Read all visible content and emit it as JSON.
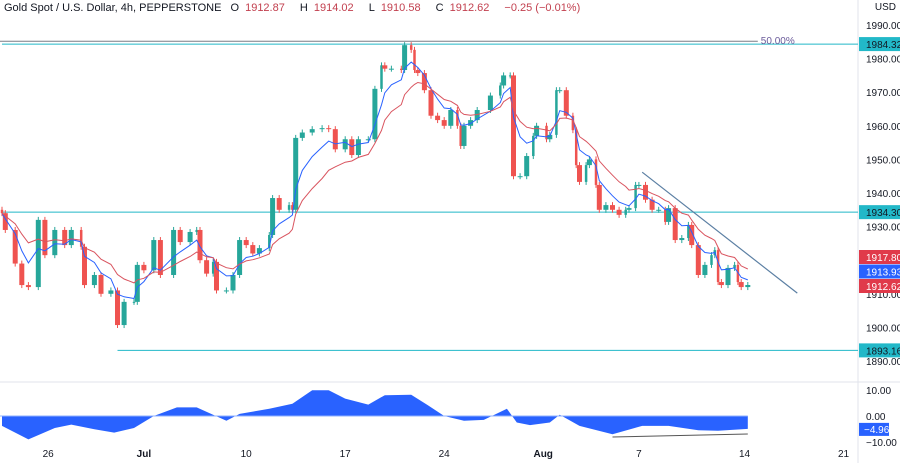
{
  "header": {
    "symbol": "Gold Spot / U.S. Dollar, 4h, PEPPERSTONE",
    "open_label": "O",
    "open": "1912.87",
    "high_label": "H",
    "high": "1914.02",
    "low_label": "L",
    "low": "1910.58",
    "close_label": "C",
    "close": "1912.62",
    "change": "−0.25 (−0.01%)"
  },
  "currency": "USD",
  "colors": {
    "up": "#26a69a",
    "down": "#ef5350",
    "level": "#22b8c8",
    "ema_fast": "#2962ff",
    "ema_slow": "#d9545f",
    "trend": "#5b7fa3",
    "oscillator": "#2962ff"
  },
  "chart_data": {
    "type": "candlestick",
    "x_unit": "4h bar",
    "y_range": [
      1885,
      1993
    ],
    "y_ticks": [
      "1990.00",
      "1980.00",
      "1970.00",
      "1960.00",
      "1950.00",
      "1940.00",
      "1930.00",
      "1910.00",
      "1900.00",
      "1890.00"
    ],
    "x_ticks": [
      {
        "label": "26",
        "bar": 14
      },
      {
        "label": "Jul",
        "bar": 43,
        "bold": true
      },
      {
        "label": "10",
        "bar": 74
      },
      {
        "label": "17",
        "bar": 104
      },
      {
        "label": "24",
        "bar": 134
      },
      {
        "label": "Aug",
        "bar": 164,
        "bold": true
      },
      {
        "label": "7",
        "bar": 193
      },
      {
        "label": "14",
        "bar": 225
      },
      {
        "label": "21",
        "bar": 255
      }
    ],
    "closes": [
      [
        0,
        1934
      ],
      [
        1,
        1929
      ],
      [
        4,
        1919
      ],
      [
        6,
        1912.6
      ],
      [
        8,
        1912
      ],
      [
        11,
        1932
      ],
      [
        13,
        1921.5
      ],
      [
        16,
        1929
      ],
      [
        19,
        1924.5
      ],
      [
        21,
        1929
      ],
      [
        24,
        1924
      ],
      [
        25,
        1912.6
      ],
      [
        28,
        1915.6
      ],
      [
        30,
        1910
      ],
      [
        33,
        1911
      ],
      [
        35,
        1900.7
      ],
      [
        37,
        1907.6
      ],
      [
        40,
        1907.6
      ],
      [
        41,
        1918.6
      ],
      [
        43,
        1917
      ],
      [
        46,
        1926
      ],
      [
        48,
        1915.6
      ],
      [
        52,
        1929
      ],
      [
        54,
        1925.4
      ],
      [
        57,
        1928.4
      ],
      [
        59,
        1929
      ],
      [
        60,
        1920
      ],
      [
        62,
        1916
      ],
      [
        64,
        1919.5
      ],
      [
        65,
        1911
      ],
      [
        68,
        1911
      ],
      [
        70,
        1915.6
      ],
      [
        72,
        1926
      ],
      [
        74,
        1924.5
      ],
      [
        76,
        1922
      ],
      [
        78,
        1923.6
      ],
      [
        81,
        1927.5
      ],
      [
        82,
        1938.5
      ],
      [
        84,
        1935
      ],
      [
        87,
        1936.4
      ],
      [
        88,
        1935
      ],
      [
        89,
        1956.4
      ],
      [
        91,
        1958
      ],
      [
        94,
        1959
      ],
      [
        97,
        1959.3
      ],
      [
        99,
        1959
      ],
      [
        101,
        1953
      ],
      [
        104,
        1956
      ],
      [
        106,
        1951.3
      ],
      [
        108,
        1956
      ],
      [
        111,
        1956
      ],
      [
        113,
        1971
      ],
      [
        115,
        1978
      ],
      [
        116,
        1977
      ],
      [
        118,
        1977
      ],
      [
        121,
        1976.6
      ],
      [
        122,
        1984
      ],
      [
        124,
        1982.6
      ],
      [
        125,
        1976.6
      ],
      [
        126,
        1975.7
      ],
      [
        128,
        1970.6
      ],
      [
        130,
        1963
      ],
      [
        132,
        1961.7
      ],
      [
        134,
        1960
      ],
      [
        136,
        1964.7
      ],
      [
        138,
        1960
      ],
      [
        139,
        1954
      ],
      [
        140,
        1960
      ],
      [
        142,
        1961.7
      ],
      [
        144,
        1964.7
      ],
      [
        148,
        1969
      ],
      [
        151,
        1972
      ],
      [
        152,
        1975
      ],
      [
        154,
        1975
      ],
      [
        155,
        1945
      ],
      [
        157,
        1945
      ],
      [
        159,
        1951
      ],
      [
        161,
        1957
      ],
      [
        162,
        1960
      ],
      [
        165,
        1956
      ],
      [
        166,
        1957.3
      ],
      [
        168,
        1970.6
      ],
      [
        169,
        1970.6
      ],
      [
        171,
        1963
      ],
      [
        173,
        1958.7
      ],
      [
        174,
        1948.3
      ],
      [
        175,
        1943.3
      ],
      [
        177,
        1948.3
      ],
      [
        178,
        1950
      ],
      [
        180,
        1942.4
      ],
      [
        181,
        1935
      ],
      [
        183,
        1936.4
      ],
      [
        185,
        1935
      ],
      [
        187,
        1933.5
      ],
      [
        189,
        1935
      ],
      [
        190,
        1935.5
      ],
      [
        192,
        1942.4
      ],
      [
        193,
        1942.4
      ],
      [
        195,
        1938
      ],
      [
        197,
        1935
      ],
      [
        199,
        1935
      ],
      [
        201,
        1931.4
      ],
      [
        202,
        1935.5
      ],
      [
        204,
        1926
      ],
      [
        206,
        1926.6
      ],
      [
        208,
        1930.5
      ],
      [
        209,
        1924.5
      ],
      [
        211,
        1915.6
      ],
      [
        213,
        1918.6
      ],
      [
        215,
        1921.5
      ],
      [
        216,
        1923
      ],
      [
        217,
        1913.5
      ],
      [
        218,
        1912.6
      ],
      [
        220,
        1917.7
      ],
      [
        222,
        1918.6
      ],
      [
        223,
        1913.5
      ],
      [
        224,
        1912
      ],
      [
        226,
        1912.62
      ]
    ],
    "levels": [
      {
        "price": 1984.32,
        "label": "1984.32",
        "from_bar": 0
      },
      {
        "price": 1934.3,
        "label": "1934.30",
        "from_bar": 0
      },
      {
        "price": 1893.16,
        "label": "1893.16",
        "from_bar": 35
      }
    ],
    "fib": {
      "price": 1984.7,
      "label": "50.00%",
      "to_bar": 226
    },
    "trendline": {
      "from": [
        194,
        1946.2
      ],
      "to": [
        241,
        1910.2
      ]
    },
    "ma_labels": [
      {
        "value": "1917.80",
        "color": "#e03a4a"
      },
      {
        "value": "1913.93",
        "color": "#2962ff"
      },
      {
        "value": "1912.62",
        "color": "#e03a4a"
      }
    ],
    "oscillator": {
      "ticks": [
        "10.00",
        "0.00",
        "−10.00"
      ],
      "last_label": "−4.96",
      "values": [
        [
          0,
          -3.8
        ],
        [
          8,
          -9
        ],
        [
          16,
          -4.6
        ],
        [
          21,
          -3.3
        ],
        [
          28,
          -5.1
        ],
        [
          34,
          -6.4
        ],
        [
          40,
          -4.6
        ],
        [
          46,
          0
        ],
        [
          53,
          3.3
        ],
        [
          59,
          3.3
        ],
        [
          68,
          -1.8
        ],
        [
          72,
          0.8
        ],
        [
          81,
          2.8
        ],
        [
          88,
          4.7
        ],
        [
          94,
          9.9
        ],
        [
          99,
          9.9
        ],
        [
          104,
          6.7
        ],
        [
          111,
          4.4
        ],
        [
          116,
          8
        ],
        [
          124,
          8.2
        ],
        [
          129,
          4.2
        ],
        [
          134,
          0
        ],
        [
          140,
          -1.8
        ],
        [
          146,
          -1.5
        ],
        [
          153,
          2.8
        ],
        [
          156,
          -2.5
        ],
        [
          160,
          -3.5
        ],
        [
          166,
          -2.5
        ],
        [
          169,
          0.5
        ],
        [
          175,
          -3.8
        ],
        [
          185,
          -7
        ],
        [
          194,
          -3.8
        ],
        [
          202,
          -3.8
        ],
        [
          211,
          -5.5
        ],
        [
          217,
          -5.7
        ],
        [
          226,
          -4.96
        ]
      ],
      "divergence_line": {
        "from": [
          185,
          -8.1
        ],
        "to": [
          226,
          -6.9
        ]
      }
    }
  }
}
